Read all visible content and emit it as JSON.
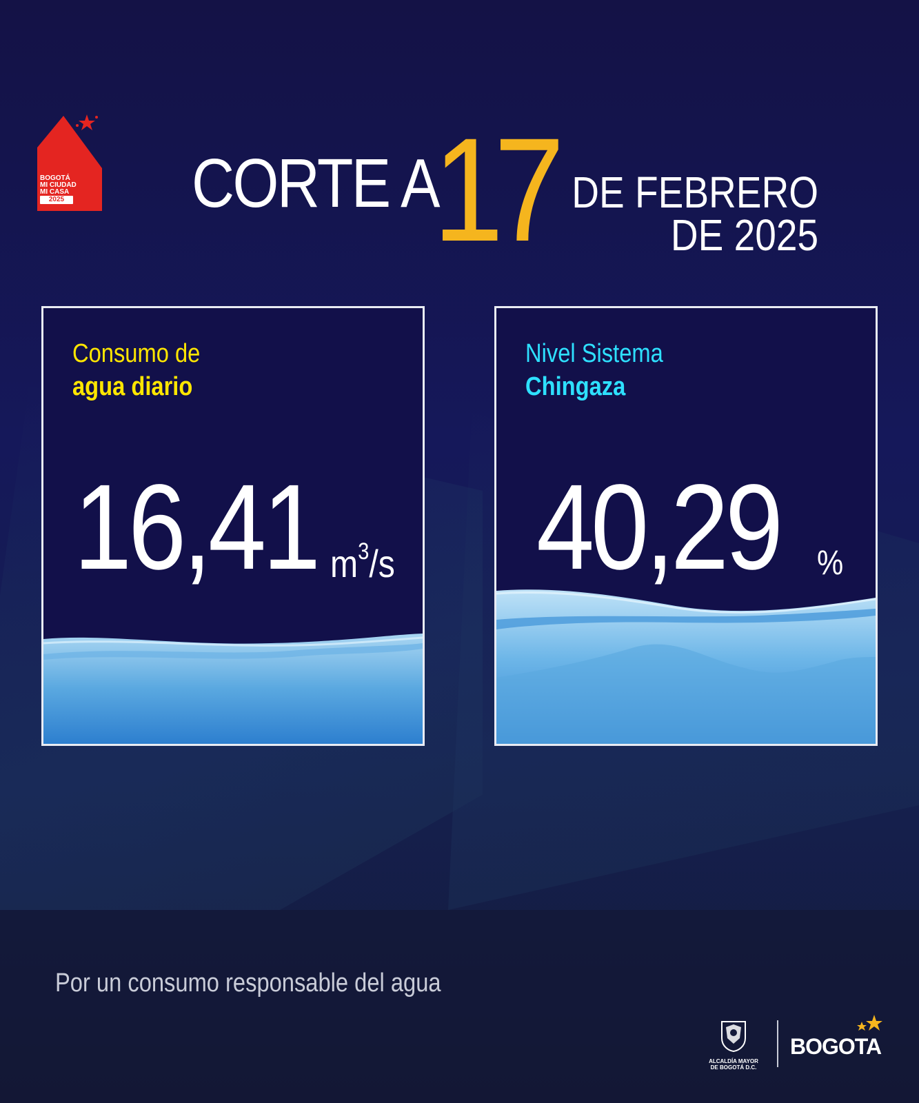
{
  "logo": {
    "line1": "BOGOTÁ",
    "line2": "MI CIUDAD",
    "line3": "MI CASA",
    "year": "2025",
    "color": "#e42521"
  },
  "header": {
    "prefix": "CORTE A",
    "day": "17",
    "month_line1": "DE FEBRERO",
    "month_line2": "DE 2025",
    "day_color": "#f5b51e"
  },
  "cards": {
    "consumo": {
      "title_line1": "Consumo de",
      "title_line2": "agua diario",
      "value": "16,41",
      "unit_base": "m",
      "unit_exp": "3",
      "unit_tail": "/s",
      "title_color": "#ffe600"
    },
    "nivel": {
      "title_line1": "Nivel Sistema",
      "title_line2": "Chingaza",
      "value": "40,29",
      "unit": "%",
      "title_color": "#2ee0ff",
      "level_percent": 40.29
    }
  },
  "tagline": "Por un consumo responsable del agua",
  "footer": {
    "alcaldia_line1": "ALCALDÍA MAYOR",
    "alcaldia_line2": "DE BOGOTÁ D.C.",
    "brand": "BOGOTA"
  }
}
